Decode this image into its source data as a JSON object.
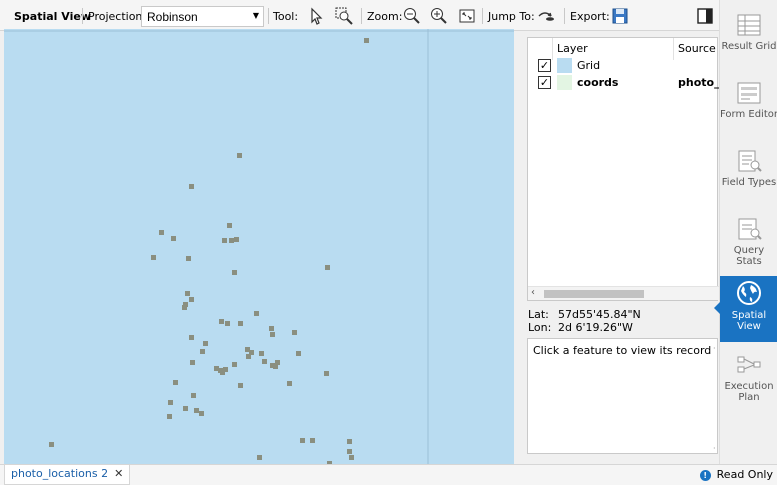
{
  "toolbar": {
    "title": "Spatial View",
    "projection_label": "Projection:",
    "projection_value": "Robinson",
    "tool_label": "Tool:",
    "zoom_label": "Zoom:",
    "jump_label": "Jump To:",
    "export_label": "Export:",
    "icons": [
      "pointer-icon",
      "zoom-select-icon",
      "zoom-out-icon",
      "zoom-in-icon",
      "zoom-extent-icon",
      "jump-to-icon",
      "export-icon",
      "panel-toggle-icon"
    ]
  },
  "map": {
    "background_color": "#b9dcf1",
    "point_color": "#8a8f80",
    "grid_color": "#9cbfd6"
  },
  "layers": {
    "headers": [
      "Layer",
      "Source"
    ],
    "rows": [
      {
        "name": "Grid",
        "source": "",
        "checked": true,
        "swatch": "#b9dcf1"
      },
      {
        "name": "coords",
        "source": "photo_l",
        "checked": true,
        "swatch": "#e3f5e3"
      }
    ]
  },
  "position": {
    "lat_label": "Lat:",
    "lat_value": "57d55'45.84\"N",
    "lon_label": "Lon:",
    "lon_value": "2d 6'19.26\"W"
  },
  "record_box": {
    "message": "Click a feature to view its record"
  },
  "sidebar": {
    "items": [
      {
        "label": "Result Grid",
        "icon": "result-grid-icon",
        "active": false
      },
      {
        "label": "Form Editor",
        "icon": "form-editor-icon",
        "active": false
      },
      {
        "label": "Field Types",
        "icon": "field-types-icon",
        "active": false
      },
      {
        "label": "Query Stats",
        "icon": "query-stats-icon",
        "active": false
      },
      {
        "label": "Spatial View",
        "icon": "globe-icon",
        "active": true
      },
      {
        "label": "Execution Plan",
        "icon": "execution-plan-icon",
        "active": false
      }
    ]
  },
  "status": {
    "tab_label": "photo_locations 2",
    "read_only": "Read Only"
  }
}
